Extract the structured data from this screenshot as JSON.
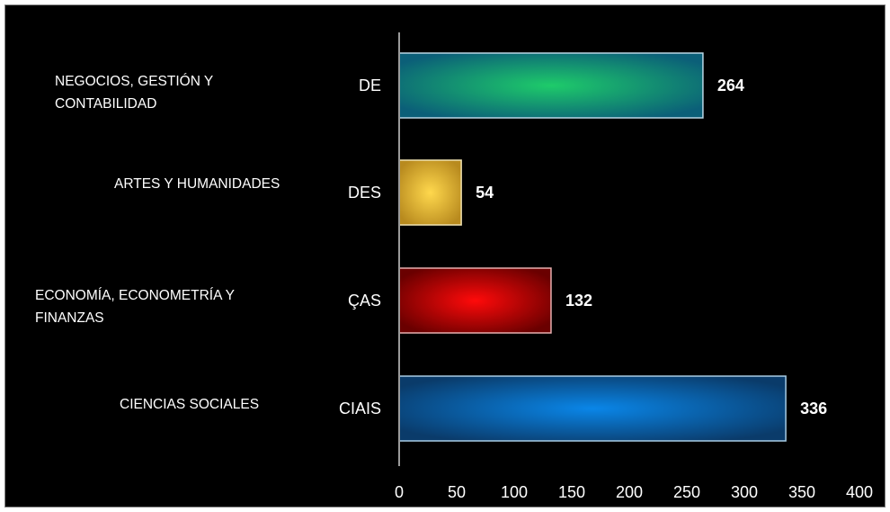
{
  "chart_data": {
    "type": "bar",
    "orientation": "horizontal",
    "categories": [
      "NEGOCIOS, GESTIÓN Y\nCONTABILIDAD",
      "ARTES Y HUMANIDADES",
      "ECONOMÍA, ECONOMETRÍA Y\nFINANZAS",
      "CIENCIAS SOCIALES"
    ],
    "axis_category_labels": [
      "DE",
      "DES",
      "ÇAS",
      "CIAIS"
    ],
    "values": [
      264,
      54,
      132,
      336
    ],
    "bar_colors": [
      "#1ecb6a",
      "#f7c948",
      "#e00000",
      "#0a7ad6"
    ],
    "xlim": [
      0,
      400
    ],
    "xticks": [
      0,
      50,
      100,
      150,
      200,
      250,
      300,
      350,
      400
    ],
    "grid": false,
    "legend": "none",
    "background": "#000000"
  }
}
